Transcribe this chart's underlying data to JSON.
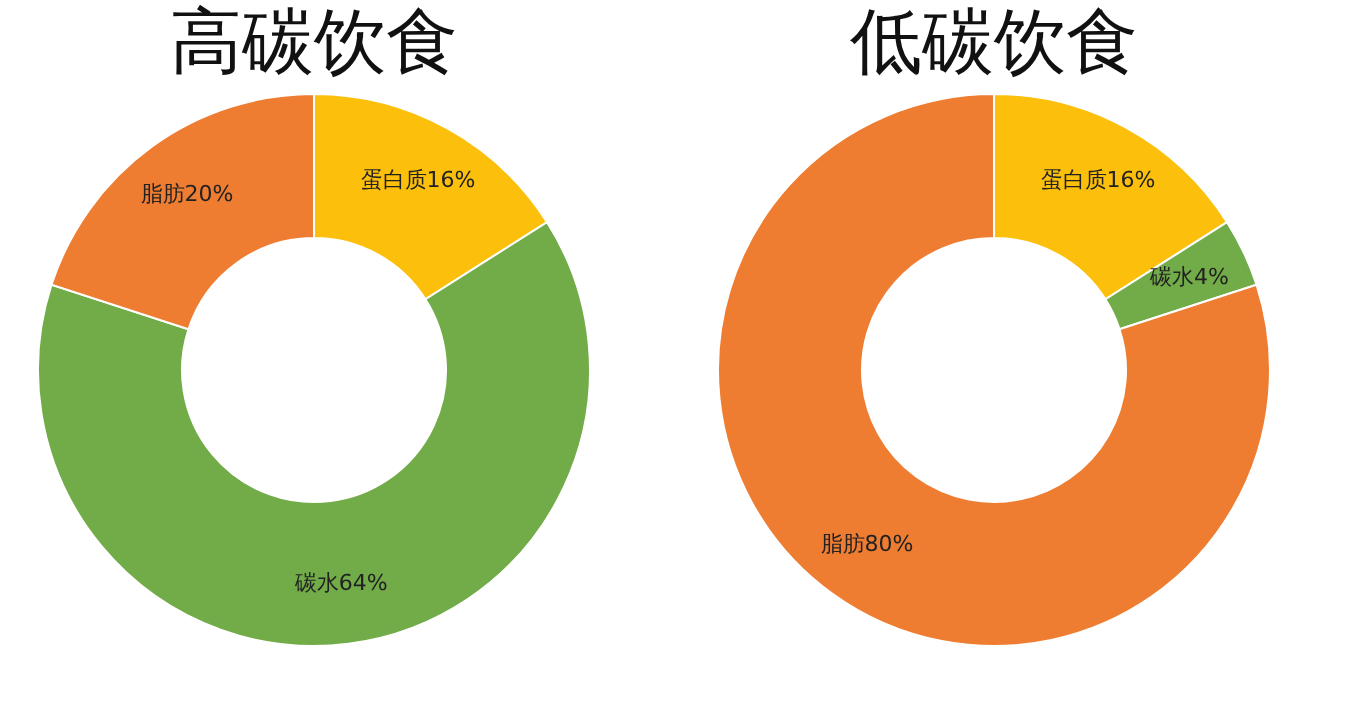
{
  "chart_data": [
    {
      "type": "donut",
      "title": "高碳饮食",
      "categories": [
        "蛋白质",
        "碳水",
        "脂肪"
      ],
      "values": [
        16,
        64,
        20
      ],
      "colors": [
        "#fcc00c",
        "#72ac48",
        "#ee7d31"
      ],
      "value_labels": [
        "16%",
        "64%",
        "20%"
      ]
    },
    {
      "type": "donut",
      "title": "低碳饮食",
      "categories": [
        "蛋白质",
        "碳水",
        "脂肪"
      ],
      "values": [
        16,
        4,
        80
      ],
      "colors": [
        "#fcc00c",
        "#72ac48",
        "#ee7d31"
      ],
      "value_labels": [
        "16%",
        "4%",
        "80%"
      ]
    }
  ]
}
